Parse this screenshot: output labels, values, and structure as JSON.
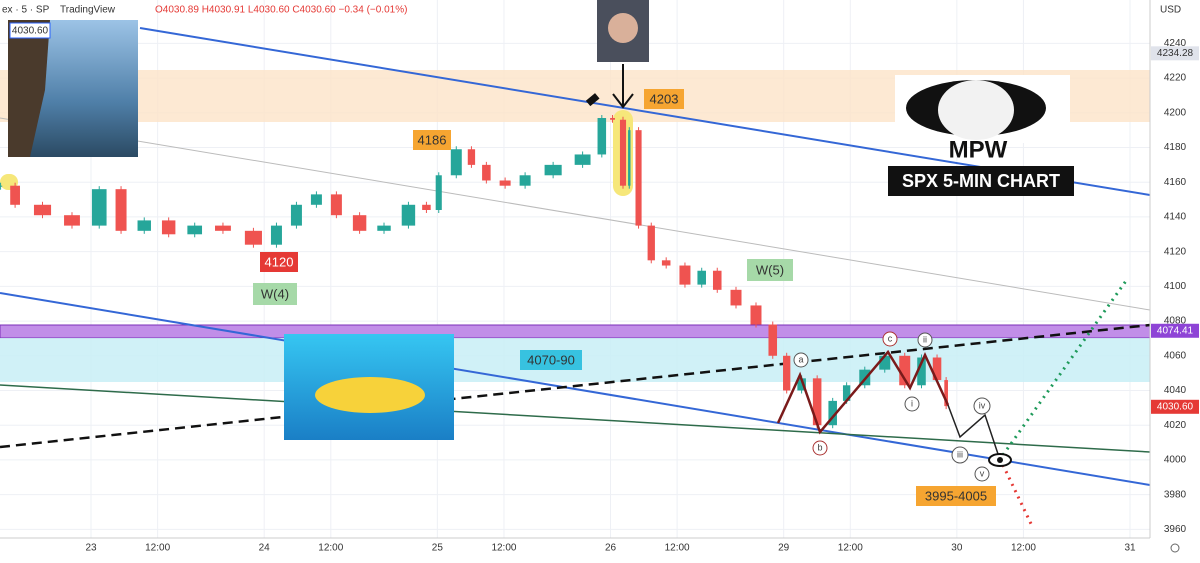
{
  "chart_data": {
    "type": "candlestick",
    "symbol": "ex · 5 · SP",
    "brand": "TradingView",
    "ohlc": "O4030.89 H4030.91 L4030.60 C4030.60 −0.34 (−0.01%)",
    "currency": "USD",
    "x": [
      -40,
      -32,
      -18,
      -5,
      7,
      16,
      27,
      38,
      50,
      63,
      77,
      86,
      95,
      104,
      113,
      124,
      135,
      146,
      153,
      158,
      167,
      173,
      180,
      189,
      198,
      212,
      225,
      232,
      236,
      241,
      243,
      248,
      254,
      261,
      270,
      277,
      284,
      293,
      302,
      309,
      315,
      322,
      329,
      336,
      342,
      351,
      360,
      369,
      376,
      383,
      386
    ],
    "values": [
      4158,
      4147,
      4141,
      4135,
      4156,
      4132,
      4138,
      4130,
      4135,
      4132,
      4124,
      4135,
      4147,
      4153,
      4141,
      4132,
      4135,
      4147,
      4144,
      4164,
      4179,
      4170,
      4161,
      4158,
      4164,
      4170,
      4176,
      4197,
      4196,
      4158,
      4190,
      4135,
      4115,
      4112,
      4101,
      4109,
      4098,
      4089,
      4078,
      4060,
      4040,
      4047,
      4020,
      4034,
      4043,
      4052,
      4060,
      4043,
      4059,
      4046,
      4031
    ],
    "up_color": "#26a69a",
    "down_color": "#ef5350",
    "xlim": [
      -41,
      477
    ],
    "xticks": [
      {
        "value": 0,
        "label": "23"
      },
      {
        "value": 30,
        "label": "12:00"
      },
      {
        "value": 78,
        "label": "24"
      },
      {
        "value": 108,
        "label": "12:00"
      },
      {
        "value": 156,
        "label": "25"
      },
      {
        "value": 186,
        "label": "12:00"
      },
      {
        "value": 234,
        "label": "26"
      },
      {
        "value": 264,
        "label": "12:00"
      },
      {
        "value": 312,
        "label": "29"
      },
      {
        "value": 342,
        "label": "12:00"
      },
      {
        "value": 390,
        "label": "30"
      },
      {
        "value": 420,
        "label": "12:00"
      },
      {
        "value": 468,
        "label": "31"
      }
    ],
    "ylim": [
      3955,
      4265
    ],
    "yticks": [
      3960,
      3980,
      4000,
      4020,
      4040,
      4060,
      4080,
      4100,
      4120,
      4140,
      4160,
      4180,
      4200,
      4220,
      4240
    ],
    "grid": true,
    "price_labels": [
      4234.28,
      4074.41,
      {
        "value": 4030.6,
        "label": "4030.60"
      }
    ],
    "annotations": [
      "4186",
      "4203",
      "4120",
      "W(4)",
      "W(5)",
      "4070-90",
      "3995-4005",
      "MPW",
      "SPX 5-MIN CHART",
      "a",
      "b",
      "c",
      "i",
      "ii",
      "iii",
      "iv",
      "v"
    ]
  }
}
